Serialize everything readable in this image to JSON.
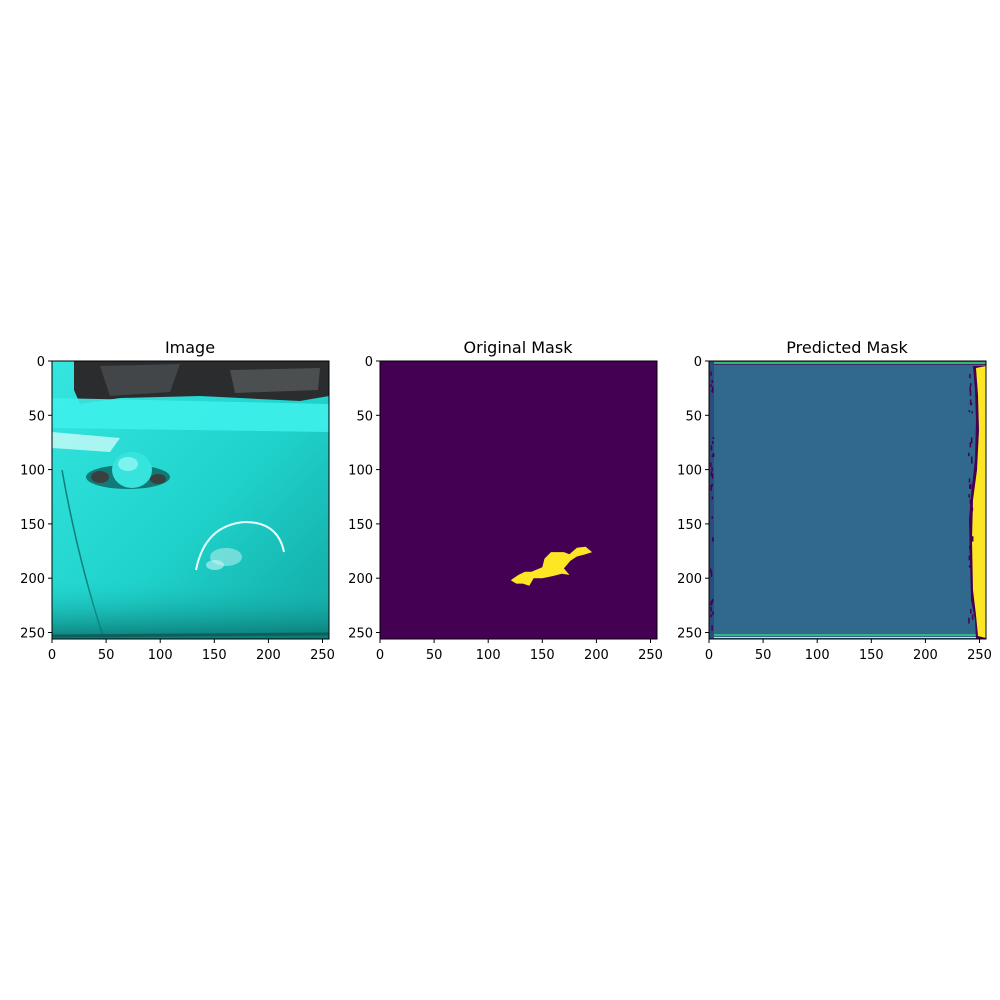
{
  "chart_data": [
    {
      "type": "image",
      "title": "Image",
      "xlim": [
        0,
        256
      ],
      "ylim": [
        256,
        0
      ],
      "xticks": [
        0,
        50,
        100,
        150,
        200,
        250
      ],
      "yticks": [
        0,
        50,
        100,
        150,
        200,
        250
      ],
      "content": "teal car door with handle and a curved scratch/dent",
      "colors": {
        "body": "#20d8d0",
        "highlight": "#8ff6f2",
        "window": "#2a2c2e",
        "shadow": "#0b7d78"
      }
    },
    {
      "type": "heatmap",
      "title": "Original Mask",
      "xlim": [
        0,
        256
      ],
      "ylim": [
        256,
        0
      ],
      "xticks": [
        0,
        50,
        100,
        150,
        200,
        250
      ],
      "yticks": [
        0,
        50,
        100,
        150,
        200,
        250
      ],
      "background_value": 0,
      "region_value": 1,
      "region_outline": [
        [
          122,
          201
        ],
        [
          128,
          197
        ],
        [
          134,
          194
        ],
        [
          140,
          194
        ],
        [
          150,
          190
        ],
        [
          152,
          182
        ],
        [
          158,
          176
        ],
        [
          170,
          176
        ],
        [
          175,
          178
        ],
        [
          182,
          172
        ],
        [
          190,
          171
        ],
        [
          196,
          176
        ],
        [
          190,
          178
        ],
        [
          182,
          180
        ],
        [
          176,
          184
        ],
        [
          170,
          191
        ],
        [
          175,
          197
        ],
        [
          168,
          196
        ],
        [
          160,
          198
        ],
        [
          150,
          200
        ],
        [
          142,
          200
        ],
        [
          138,
          207
        ],
        [
          132,
          205
        ],
        [
          126,
          205
        ],
        [
          121,
          202
        ]
      ],
      "colors": {
        "background": "#440154",
        "region": "#fde725"
      }
    },
    {
      "type": "heatmap",
      "title": "Predicted Mask",
      "xlim": [
        0,
        256
      ],
      "ylim": [
        256,
        0
      ],
      "xticks": [
        0,
        50,
        100,
        150,
        200,
        250
      ],
      "yticks": [
        0,
        50,
        100,
        150,
        200,
        250
      ],
      "background_value": 0.33,
      "edge_strips": "yellow strip along right edge, green lines near top and bottom edges, dark purple dots along left and right borders",
      "colors": {
        "background": "#31688e",
        "high": "#fde725",
        "mid": "#35b779",
        "low": "#440154"
      }
    }
  ]
}
